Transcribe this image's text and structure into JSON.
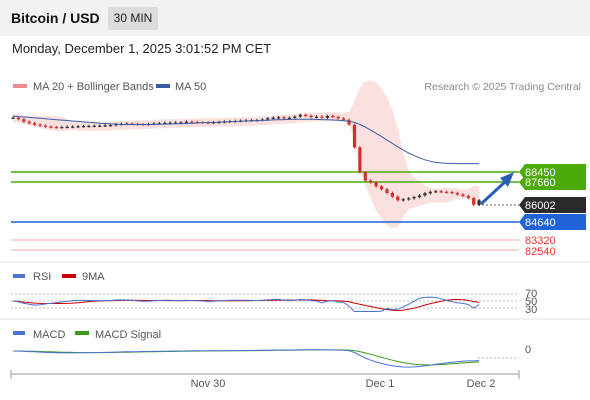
{
  "header": {
    "pair": "Bitcoin / USD",
    "timeframe": "30 MIN",
    "timestamp": "Monday, December 1, 2025 3:01:52 PM CET"
  },
  "colors": {
    "bollinger": "#f4a6a6",
    "ma20": "#f08a8a",
    "ma50": "#3a5da6",
    "resistance": "#4caa0a",
    "support": "#1f63d6",
    "target": "#e8332c",
    "rsi": "#4a72d4",
    "rsi_ma": "#cc0000",
    "macd": "#4a72d4",
    "macd_signal": "#3a9a1a",
    "arrow": "#2a5fb8",
    "candle_up": "#333333",
    "candle_down": "#d32f2f"
  },
  "price_panel": {
    "legend": [
      {
        "label": "MA 20 + Bollinger Bands",
        "icon": "ma20-swatch-icon"
      },
      {
        "label": "MA 50",
        "icon": "ma50-swatch-icon"
      }
    ],
    "credit": "Research © 2025 Trading Central",
    "levels": [
      {
        "label": "88450",
        "value": 88450,
        "kind": "resistance"
      },
      {
        "label": "87660",
        "value": 87660,
        "kind": "resistance"
      },
      {
        "label": "86002",
        "value": 86002,
        "kind": "last"
      },
      {
        "label": "84640",
        "value": 84640,
        "kind": "support"
      },
      {
        "label": "83320",
        "value": 83320,
        "kind": "target"
      },
      {
        "label": "82540",
        "value": 82540,
        "kind": "target"
      }
    ]
  },
  "rsi_panel": {
    "legend": [
      {
        "label": "RSI"
      },
      {
        "label": "9MA"
      }
    ],
    "levels": [
      "70",
      "50",
      "30"
    ]
  },
  "macd_panel": {
    "legend": [
      {
        "label": "MACD"
      },
      {
        "label": "MACD Signal"
      }
    ],
    "level": "0"
  },
  "x_axis": {
    "labels": [
      "Nov 30",
      "Dec 1",
      "Dec 2"
    ]
  },
  "chart_data": {
    "type": "candlestick",
    "title": "Bitcoin / USD",
    "timeframe": "30 MIN",
    "ylim": [
      81700,
      93000
    ],
    "close": [
      91520,
      91420,
      91250,
      91150,
      91050,
      90980,
      90920,
      90880,
      90870,
      90880,
      90900,
      90920,
      90940,
      90950,
      90960,
      90970,
      90980,
      91000,
      91020,
      91080,
      91100,
      91120,
      91100,
      91090,
      91080,
      91100,
      91130,
      91150,
      91170,
      91180,
      91190,
      91200,
      91250,
      91230,
      91210,
      91200,
      91190,
      91210,
      91230,
      91260,
      91280,
      91300,
      91320,
      91340,
      91350,
      91360,
      91400,
      91480,
      91520,
      91550,
      91500,
      91520,
      91600,
      91720,
      91650,
      91560,
      91600,
      91520,
      91640,
      91580,
      91480,
      91380,
      91050,
      89500,
      87800,
      87250,
      87120,
      86850,
      86650,
      86400,
      86150,
      85900,
      85970,
      86030,
      86120,
      86230,
      86380,
      86480,
      86520,
      86480,
      86450,
      86400,
      86300,
      86200,
      86050,
      85600,
      85900
    ],
    "ma50": [
      91630,
      91600,
      91570,
      91540,
      91510,
      91480,
      91450,
      91420,
      91390,
      91360,
      91330,
      91300,
      91270,
      91240,
      91210,
      91180,
      91150,
      91125,
      91100,
      91085,
      91070,
      91060,
      91055,
      91050,
      91050,
      91055,
      91065,
      91075,
      91085,
      91095,
      91105,
      91115,
      91130,
      91145,
      91160,
      91175,
      91190,
      91205,
      91220,
      91235,
      91250,
      91265,
      91280,
      91295,
      91310,
      91325,
      91340,
      91355,
      91370,
      91385,
      91395,
      91405,
      91415,
      91420,
      91420,
      91415,
      91405,
      91395,
      91380,
      91365,
      91345,
      91320,
      91280,
      91200,
      91060,
      90880,
      90680,
      90460,
      90230,
      90000,
      89770,
      89540,
      89320,
      89120,
      88940,
      88790,
      88660,
      88560,
      88480,
      88440,
      88420,
      88410,
      88400,
      88400,
      88400,
      88400,
      88400
    ],
    "projection": {
      "from": 85900,
      "to": 88450
    },
    "x_labels": [
      "Nov 30",
      "Dec 1",
      "Dec 2"
    ],
    "series": [
      {
        "name": "MA 20 + Bollinger Bands"
      },
      {
        "name": "MA 50"
      },
      {
        "name": "RSI"
      },
      {
        "name": "9MA"
      },
      {
        "name": "MACD"
      },
      {
        "name": "MACD Signal"
      }
    ],
    "rsi_levels": [
      70,
      50,
      30
    ],
    "macd_level": 0
  }
}
